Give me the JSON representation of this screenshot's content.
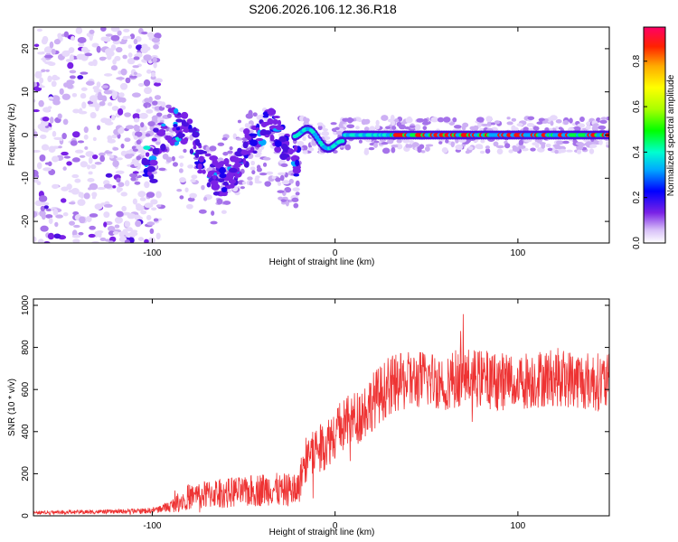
{
  "title": "S206.2026.106.12.36.R18",
  "chart_data": [
    {
      "type": "heatmap",
      "xlabel": "Height of straight line (km)",
      "ylabel": "Frequency (Hz)",
      "xlim": [
        -165,
        150
      ],
      "ylim": [
        -25,
        25
      ],
      "xticks": [
        -100,
        0,
        100
      ],
      "yticks": [
        -20,
        -10,
        0,
        10,
        20
      ],
      "colorbar": {
        "label": "Normalized spectral amplitude",
        "range": [
          0,
          0.95
        ],
        "ticks": [
          0.0,
          0.2,
          0.4,
          0.6,
          0.8
        ]
      },
      "description_of_content": [
        {
          "x_range": [
            -165,
            -100
          ],
          "level": "low",
          "frequency_spread_hz": 25
        },
        {
          "x_range": [
            -100,
            -20
          ],
          "level": "medium",
          "frequency_range_hz": [
            -15,
            7
          ]
        },
        {
          "x_range": [
            -20,
            150
          ],
          "level": "high",
          "frequency_hz": 0
        }
      ]
    },
    {
      "type": "line",
      "xlabel": "Height of straight line (km)",
      "ylabel": "SNR (10 * v/v)",
      "xlim": [
        -165,
        150
      ],
      "ylim": [
        0,
        1030
      ],
      "xticks": [
        -100,
        0,
        100
      ],
      "yticks": [
        0,
        200,
        400,
        600,
        800,
        1000
      ],
      "series": [
        {
          "name": "SNR",
          "color": "#ee3333",
          "x": [
            -165,
            -140,
            -120,
            -110,
            -100,
            -95,
            -90,
            -85,
            -80,
            -75,
            -70,
            -65,
            -60,
            -55,
            -50,
            -45,
            -40,
            -35,
            -30,
            -25,
            -20,
            -17,
            -15,
            -10,
            -5,
            0,
            5,
            10,
            15,
            20,
            25,
            30,
            35,
            40,
            50,
            60,
            70,
            80,
            90,
            100,
            110,
            120,
            130,
            140,
            150
          ],
          "mean": [
            15,
            18,
            20,
            22,
            25,
            35,
            45,
            70,
            90,
            95,
            100,
            110,
            105,
            115,
            110,
            120,
            125,
            130,
            120,
            125,
            130,
            250,
            300,
            320,
            340,
            400,
            430,
            460,
            490,
            540,
            580,
            620,
            630,
            640,
            650,
            640,
            660,
            650,
            640,
            640,
            650,
            660,
            650,
            640,
            630
          ],
          "noise_amplitude": [
            8,
            10,
            10,
            12,
            14,
            20,
            30,
            50,
            60,
            65,
            70,
            70,
            70,
            75,
            70,
            80,
            80,
            80,
            80,
            80,
            80,
            110,
            120,
            120,
            120,
            130,
            130,
            130,
            140,
            140,
            140,
            140,
            140,
            140,
            140,
            140,
            140,
            140,
            140,
            140,
            140,
            140,
            140,
            140,
            140
          ]
        }
      ]
    }
  ]
}
